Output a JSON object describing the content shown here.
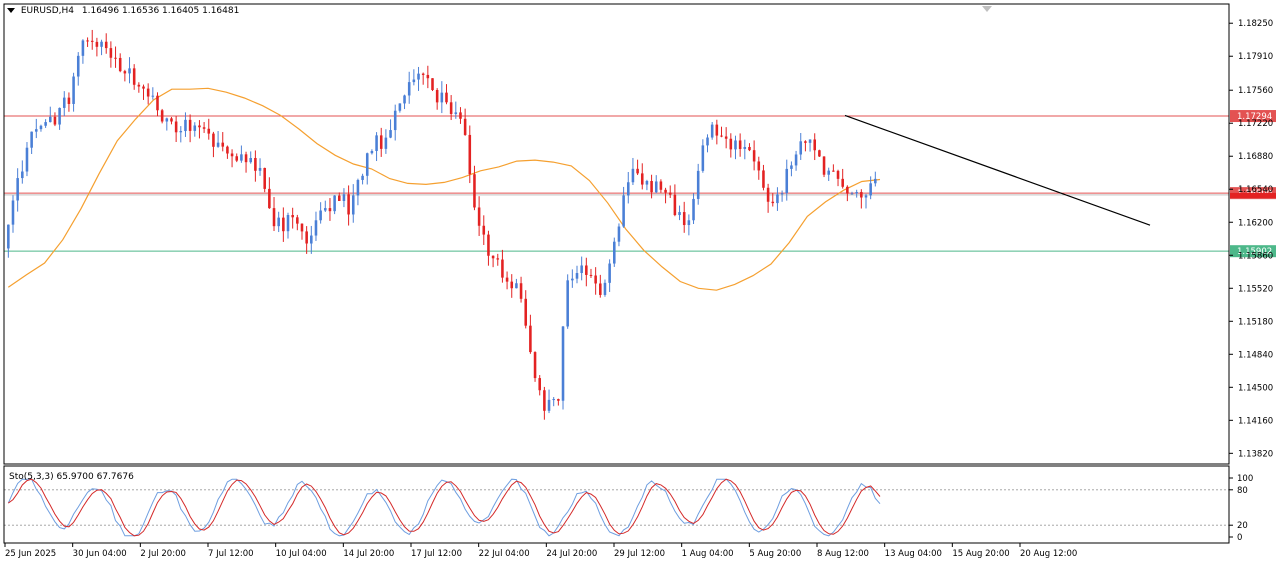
{
  "header": {
    "symbol": "EURUSD,H4",
    "ohlc": "1.16496 1.16536 1.16405 1.16481"
  },
  "indicator": {
    "label": "Sto(5,3,3) 65.9700 67.7676"
  },
  "colors": {
    "bull": "#4a7fd6",
    "bear": "#e32222",
    "ma": "#f5a030",
    "stoch_main": "#6f9fe0",
    "stoch_signal": "#d42a2a",
    "red_level": "#e35252",
    "green_level": "#4db88a",
    "trendline": "#000000",
    "current_price_bg": "#e32222"
  },
  "chart_data": [
    {
      "type": "candlestick",
      "symbol": "EURUSD",
      "timeframe": "H4",
      "ylim": [
        1.1382,
        1.1852
      ],
      "price_axis_ticks": [
        "1.18250",
        "1.17910",
        "1.17560",
        "1.17220",
        "1.16880",
        "1.16540",
        "1.16200",
        "1.15860",
        "1.15520",
        "1.15180",
        "1.14840",
        "1.14500",
        "1.14160",
        "1.13820"
      ],
      "time_axis_labels": [
        "25 Jun 2025",
        "30 Jun 04:00",
        "2 Jul 20:00",
        "7 Jul 12:00",
        "10 Jul 04:00",
        "14 Jul 20:00",
        "17 Jul 12:00",
        "22 Jul 04:00",
        "24 Jul 20:00",
        "29 Jul 12:00",
        "1 Aug 04:00",
        "5 Aug 20:00",
        "8 Aug 12:00",
        "13 Aug 04:00",
        "15 Aug 20:00",
        "20 Aug 12:00"
      ],
      "horizontal_levels": [
        {
          "price": 1.17294,
          "label": "1.17294",
          "color": "red"
        },
        {
          "price": 1.165,
          "label": "1.16500",
          "color": "red"
        },
        {
          "price": 1.15902,
          "label": "1.15902",
          "color": "green"
        }
      ],
      "current_price": {
        "price": 1.16481,
        "label": "1.16481"
      },
      "trendline": {
        "from": {
          "time": "13 Aug 04:00",
          "price": 1.173
        },
        "to": {
          "time": "22 Aug 20:00",
          "price": 1.1617
        }
      },
      "moving_average_path": [
        {
          "t": 0,
          "p": 1.1553
        },
        {
          "t": 5,
          "p": 1.1566
        },
        {
          "t": 10,
          "p": 1.1578
        },
        {
          "t": 15,
          "p": 1.1602
        },
        {
          "t": 20,
          "p": 1.1634
        },
        {
          "t": 25,
          "p": 1.167
        },
        {
          "t": 30,
          "p": 1.1704
        },
        {
          "t": 35,
          "p": 1.1726
        },
        {
          "t": 40,
          "p": 1.1746
        },
        {
          "t": 45,
          "p": 1.1757
        },
        {
          "t": 50,
          "p": 1.1757
        },
        {
          "t": 55,
          "p": 1.1758
        },
        {
          "t": 60,
          "p": 1.1754
        },
        {
          "t": 65,
          "p": 1.1748
        },
        {
          "t": 70,
          "p": 1.174
        },
        {
          "t": 75,
          "p": 1.173
        },
        {
          "t": 80,
          "p": 1.1716
        },
        {
          "t": 85,
          "p": 1.1701
        },
        {
          "t": 90,
          "p": 1.1689
        },
        {
          "t": 95,
          "p": 1.168
        },
        {
          "t": 100,
          "p": 1.1675
        },
        {
          "t": 105,
          "p": 1.1665
        },
        {
          "t": 110,
          "p": 1.166
        },
        {
          "t": 115,
          "p": 1.1659
        },
        {
          "t": 120,
          "p": 1.1661
        },
        {
          "t": 125,
          "p": 1.1666
        },
        {
          "t": 130,
          "p": 1.1673
        },
        {
          "t": 135,
          "p": 1.1677
        },
        {
          "t": 140,
          "p": 1.1683
        },
        {
          "t": 145,
          "p": 1.1684
        },
        {
          "t": 150,
          "p": 1.1682
        },
        {
          "t": 155,
          "p": 1.1678
        },
        {
          "t": 160,
          "p": 1.1663
        },
        {
          "t": 165,
          "p": 1.164
        },
        {
          "t": 170,
          "p": 1.1613
        },
        {
          "t": 175,
          "p": 1.1591
        },
        {
          "t": 180,
          "p": 1.1574
        },
        {
          "t": 185,
          "p": 1.1559
        },
        {
          "t": 190,
          "p": 1.1552
        },
        {
          "t": 195,
          "p": 1.155
        },
        {
          "t": 200,
          "p": 1.1556
        },
        {
          "t": 205,
          "p": 1.1565
        },
        {
          "t": 210,
          "p": 1.1577
        },
        {
          "t": 215,
          "p": 1.1599
        },
        {
          "t": 220,
          "p": 1.1626
        },
        {
          "t": 225,
          "p": 1.1641
        },
        {
          "t": 230,
          "p": 1.1653
        },
        {
          "t": 235,
          "p": 1.1662
        },
        {
          "t": 240,
          "p": 1.1664
        }
      ]
    },
    {
      "type": "line",
      "name": "Sto(5,3,3)",
      "ylim": [
        0,
        100
      ],
      "levels": [
        20,
        80
      ],
      "axis_ticks": [
        "100",
        "80",
        "20",
        "0"
      ]
    }
  ]
}
